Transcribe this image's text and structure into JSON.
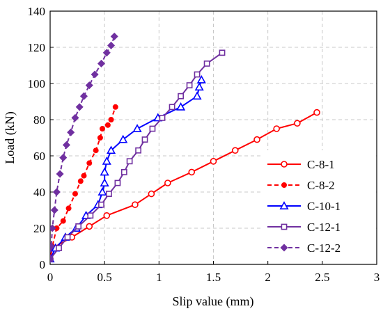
{
  "chart_data": {
    "type": "line",
    "title": "",
    "xlabel": "Slip value (mm)",
    "ylabel": "Load (kN)",
    "xlim": [
      0,
      3
    ],
    "ylim": [
      0,
      140
    ],
    "xticks": [
      "0",
      "0.5",
      "1",
      "1.5",
      "2",
      "2.5",
      "3"
    ],
    "yticks": [
      "0",
      "20",
      "40",
      "60",
      "80",
      "100",
      "120",
      "140"
    ],
    "grid": true,
    "legend_position": "bottom-right",
    "series": [
      {
        "name": "C-8-1",
        "color": "#ff0000",
        "dash": "solid",
        "marker": "circle-open",
        "points": [
          [
            0.0,
            3
          ],
          [
            0.02,
            9
          ],
          [
            0.2,
            15
          ],
          [
            0.36,
            21
          ],
          [
            0.52,
            27
          ],
          [
            0.78,
            33
          ],
          [
            0.93,
            39
          ],
          [
            1.08,
            45
          ],
          [
            1.3,
            51
          ],
          [
            1.5,
            57
          ],
          [
            1.7,
            63
          ],
          [
            1.9,
            69
          ],
          [
            2.08,
            75
          ],
          [
            2.27,
            78
          ],
          [
            2.45,
            84
          ]
        ]
      },
      {
        "name": "C-8-2",
        "color": "#ff0000",
        "dash": "dashed",
        "marker": "circle-filled",
        "points": [
          [
            0.0,
            3
          ],
          [
            0.02,
            10
          ],
          [
            0.06,
            20
          ],
          [
            0.12,
            24
          ],
          [
            0.17,
            31
          ],
          [
            0.23,
            39
          ],
          [
            0.28,
            46
          ],
          [
            0.31,
            49
          ],
          [
            0.36,
            56
          ],
          [
            0.42,
            63
          ],
          [
            0.46,
            70
          ],
          [
            0.48,
            75
          ],
          [
            0.53,
            77
          ],
          [
            0.56,
            80
          ],
          [
            0.6,
            87
          ]
        ]
      },
      {
        "name": "C-10-1",
        "color": "#0000ff",
        "dash": "solid",
        "marker": "triangle-open",
        "points": [
          [
            0.0,
            3
          ],
          [
            0.05,
            9
          ],
          [
            0.14,
            15
          ],
          [
            0.24,
            20
          ],
          [
            0.33,
            27
          ],
          [
            0.44,
            33
          ],
          [
            0.48,
            40
          ],
          [
            0.5,
            45
          ],
          [
            0.5,
            51
          ],
          [
            0.52,
            57
          ],
          [
            0.56,
            63
          ],
          [
            0.67,
            69
          ],
          [
            0.8,
            75
          ],
          [
            0.99,
            81
          ],
          [
            1.2,
            87
          ],
          [
            1.35,
            93
          ],
          [
            1.37,
            98
          ],
          [
            1.39,
            102
          ]
        ]
      },
      {
        "name": "C-12-1",
        "color": "#7030a0",
        "dash": "solid",
        "marker": "square-open",
        "points": [
          [
            0.0,
            3
          ],
          [
            0.08,
            9
          ],
          [
            0.16,
            15
          ],
          [
            0.26,
            21
          ],
          [
            0.37,
            27
          ],
          [
            0.47,
            33
          ],
          [
            0.54,
            39
          ],
          [
            0.62,
            45
          ],
          [
            0.68,
            51
          ],
          [
            0.73,
            57
          ],
          [
            0.81,
            63
          ],
          [
            0.87,
            69
          ],
          [
            0.94,
            75
          ],
          [
            1.03,
            81
          ],
          [
            1.12,
            87
          ],
          [
            1.2,
            93
          ],
          [
            1.28,
            99
          ],
          [
            1.35,
            105
          ],
          [
            1.44,
            111
          ],
          [
            1.58,
            117
          ]
        ]
      },
      {
        "name": "C-12-2",
        "color": "#7030a0",
        "dash": "dashed",
        "marker": "diamond-filled",
        "points": [
          [
            0.0,
            3
          ],
          [
            0.01,
            10
          ],
          [
            0.02,
            20
          ],
          [
            0.04,
            30
          ],
          [
            0.06,
            40
          ],
          [
            0.09,
            50
          ],
          [
            0.12,
            59
          ],
          [
            0.15,
            66
          ],
          [
            0.19,
            73
          ],
          [
            0.23,
            81
          ],
          [
            0.27,
            87
          ],
          [
            0.31,
            93
          ],
          [
            0.36,
            99
          ],
          [
            0.41,
            105
          ],
          [
            0.47,
            111
          ],
          [
            0.52,
            117
          ],
          [
            0.56,
            121
          ],
          [
            0.59,
            126
          ]
        ]
      }
    ]
  }
}
